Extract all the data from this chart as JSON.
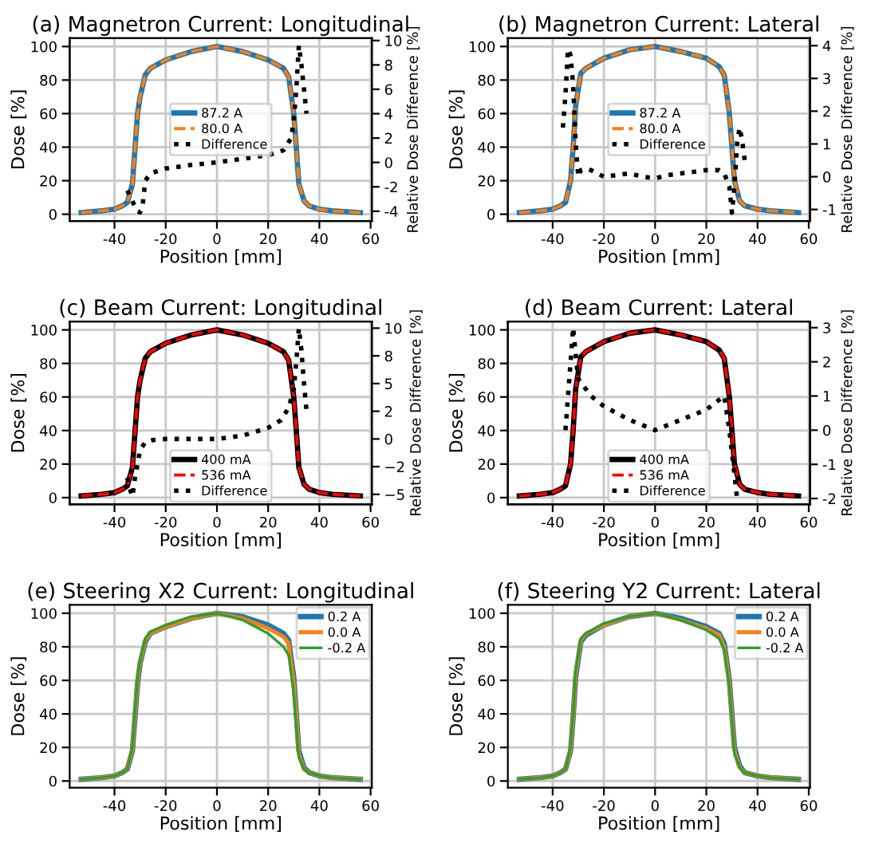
{
  "chart_data": [
    {
      "type": "line",
      "title": "(a) Magnetron Current: Longitudinal",
      "xlabel": "Position [mm]",
      "ylabel": "Dose [%]",
      "y2label": "Relative Dose Difference [%]",
      "x": [
        -53,
        -45,
        -40,
        -37,
        -35,
        -33,
        -31,
        -30,
        -28,
        -26,
        -20,
        -10,
        0,
        10,
        20,
        26,
        28,
        30,
        31,
        32,
        34,
        36,
        40,
        45,
        56
      ],
      "series": [
        {
          "name": "87.2 A",
          "color": "#1f77b4",
          "line_style": "solid",
          "values": [
            1,
            2,
            3,
            5,
            7,
            18,
            60,
            70,
            83,
            87,
            92,
            97,
            100,
            97,
            92,
            87,
            82,
            60,
            40,
            18,
            8,
            5,
            3,
            2,
            1
          ]
        },
        {
          "name": "80.0 A",
          "color": "#ff7f0e",
          "line_style": "dashed",
          "values": [
            1,
            2,
            3,
            5,
            7,
            18,
            60,
            70,
            83,
            87,
            92,
            97,
            100,
            97,
            92,
            87,
            82,
            60,
            40,
            18,
            8,
            5,
            3,
            2,
            1
          ]
        },
        {
          "name": "Difference",
          "color": "#000000",
          "line_style": "dotted",
          "axis": "y2",
          "x": [
            -35,
            -33,
            -31,
            -30,
            -29,
            -28,
            -26,
            -20,
            -10,
            0,
            10,
            20,
            26,
            29,
            30,
            31,
            32,
            33,
            34,
            35
          ],
          "values": [
            -2.3,
            -3.2,
            -4,
            -4.1,
            -3.5,
            -1.5,
            -0.9,
            -0.5,
            -0.2,
            0,
            0.3,
            0.6,
            1,
            2,
            3.5,
            6,
            9.6,
            8,
            6,
            4
          ]
        }
      ],
      "xlim": [
        -57.5,
        60.5
      ],
      "xticks": [
        -40,
        -20,
        0,
        20,
        40,
        60
      ],
      "ylim": [
        -4,
        105
      ],
      "yticks": [
        0,
        20,
        40,
        60,
        80,
        100
      ],
      "y2lim": [
        -4.8,
        10.2
      ],
      "y2ticks": [
        -4,
        -2,
        0,
        2,
        4,
        6,
        8,
        10
      ],
      "grid": true,
      "legend": "center",
      "marker": "none"
    },
    {
      "type": "line",
      "title": "(b) Magnetron Current: Lateral",
      "xlabel": "Position [mm]",
      "ylabel": "Dose [%]",
      "y2label": "Relative Dose Difference [%]",
      "x": [
        -53,
        -45,
        -40,
        -37,
        -35,
        -33,
        -32,
        -31,
        -29,
        -27,
        -20,
        -10,
        0,
        10,
        20,
        25,
        27,
        29,
        30,
        31,
        33,
        35,
        40,
        45,
        56
      ],
      "series": [
        {
          "name": "87.2 A",
          "color": "#1f77b4",
          "line_style": "solid",
          "values": [
            1,
            2,
            3,
            5,
            7,
            20,
            40,
            65,
            84,
            87,
            93,
            98,
            100,
            97,
            93,
            88,
            83,
            60,
            40,
            20,
            8,
            5,
            3,
            2,
            1
          ]
        },
        {
          "name": "80.0 A",
          "color": "#ff7f0e",
          "line_style": "dashed",
          "values": [
            1,
            2,
            3,
            5,
            7,
            20,
            40,
            65,
            84,
            87,
            93,
            98,
            100,
            97,
            93,
            88,
            83,
            60,
            40,
            20,
            8,
            5,
            3,
            2,
            1
          ]
        },
        {
          "name": "Difference",
          "color": "#000000",
          "line_style": "dotted",
          "axis": "y2",
          "x": [
            -36,
            -35,
            -34,
            -33,
            -32,
            -31,
            -30,
            -29,
            -27,
            -25,
            -20,
            -15,
            -10,
            -5,
            0,
            5,
            10,
            15,
            20,
            25,
            27,
            29,
            30,
            31,
            32,
            33,
            34,
            35
          ],
          "values": [
            1.5,
            2.5,
            3.9,
            3.7,
            2.8,
            1,
            0,
            0.2,
            0.25,
            0.2,
            0,
            0.05,
            0.1,
            0,
            -0.05,
            0.05,
            0.1,
            0.15,
            0.2,
            0.2,
            0.1,
            -0.3,
            -1.1,
            -0.3,
            1,
            1.5,
            1.1,
            0.5
          ]
        }
      ],
      "xlim": [
        -57.5,
        60.5
      ],
      "xticks": [
        -40,
        -20,
        0,
        20,
        40,
        60
      ],
      "ylim": [
        -4,
        105
      ],
      "yticks": [
        0,
        20,
        40,
        60,
        80,
        100
      ],
      "y2lim": [
        -1.35,
        4.23
      ],
      "y2ticks": [
        -1,
        0,
        1,
        2,
        3,
        4
      ],
      "grid": true,
      "legend": "center",
      "marker": "none"
    },
    {
      "type": "line",
      "title": "(c) Beam Current: Longitudinal",
      "xlabel": "Position [mm]",
      "ylabel": "Dose [%]",
      "y2label": "Relative Dose Difference [%]",
      "x": [
        -53,
        -45,
        -40,
        -37,
        -35,
        -33,
        -31,
        -30,
        -28,
        -26,
        -20,
        -10,
        0,
        10,
        20,
        26,
        28,
        30,
        31,
        32,
        34,
        36,
        40,
        45,
        56
      ],
      "series": [
        {
          "name": "400 mA",
          "color": "#000000",
          "line_style": "solid",
          "values": [
            1,
            2,
            3,
            5,
            7,
            18,
            60,
            70,
            83,
            87,
            92,
            97,
            100,
            97,
            92,
            87,
            82,
            60,
            40,
            18,
            8,
            5,
            3,
            2,
            1
          ]
        },
        {
          "name": "536 mA",
          "color": "#ff0000",
          "line_style": "dashed",
          "values": [
            1,
            2,
            3,
            5,
            7,
            18,
            60,
            70,
            83,
            87,
            92,
            97,
            100,
            97,
            92,
            87,
            82,
            60,
            40,
            18,
            8,
            5,
            3,
            2,
            1
          ]
        },
        {
          "name": "Difference",
          "color": "#000000",
          "line_style": "dotted",
          "axis": "y2",
          "x": [
            -35,
            -34,
            -33,
            -32,
            -30,
            -28,
            -25,
            -20,
            -10,
            0,
            10,
            20,
            25,
            28,
            30,
            31,
            32,
            33,
            34,
            35
          ],
          "values": [
            -3.5,
            -4.5,
            -5.2,
            -3.5,
            -1,
            -0.3,
            -0.1,
            0,
            0,
            0,
            0.3,
            1,
            1.7,
            2.8,
            4.5,
            7,
            10,
            8,
            5,
            2.5
          ]
        }
      ],
      "xlim": [
        -57.5,
        60.5
      ],
      "xticks": [
        -40,
        -20,
        0,
        20,
        40,
        60
      ],
      "ylim": [
        -4,
        105
      ],
      "yticks": [
        0,
        20,
        40,
        60,
        80,
        100
      ],
      "y2lim": [
        -5.9,
        10.6
      ],
      "y2ticks": [
        {
          "value": -5,
          "label": "−5"
        },
        {
          "value": -2.5,
          "label": "−2"
        },
        0,
        {
          "value": 2.5,
          "label": "2"
        },
        5,
        {
          "value": 7.5,
          "label": "8"
        },
        10
      ],
      "grid": true,
      "legend": "bottom",
      "marker": "none"
    },
    {
      "type": "line",
      "title": "(d) Beam Current: Lateral",
      "xlabel": "Position [mm]",
      "ylabel": "Dose [%]",
      "y2label": "Relative Dose Difference [%]",
      "x": [
        -53,
        -45,
        -40,
        -37,
        -35,
        -33,
        -32,
        -31,
        -29,
        -27,
        -20,
        -10,
        0,
        10,
        20,
        25,
        27,
        29,
        30,
        31,
        33,
        35,
        40,
        45,
        56
      ],
      "series": [
        {
          "name": "400 mA",
          "color": "#000000",
          "line_style": "solid",
          "values": [
            1,
            2,
            3,
            5,
            7,
            20,
            40,
            65,
            84,
            87,
            93,
            98,
            100,
            97,
            93,
            88,
            83,
            60,
            40,
            20,
            8,
            5,
            3,
            2,
            1
          ]
        },
        {
          "name": "536 mA",
          "color": "#ff0000",
          "line_style": "dashed",
          "values": [
            1,
            2,
            3,
            5,
            7,
            20,
            40,
            65,
            84,
            87,
            93,
            98,
            100,
            97,
            93,
            88,
            83,
            60,
            40,
            20,
            8,
            5,
            3,
            2,
            1
          ]
        },
        {
          "name": "Difference",
          "color": "#000000",
          "line_style": "dotted",
          "axis": "y2",
          "x": [
            -35,
            -33,
            -32,
            -31,
            -30,
            -25,
            -20,
            -10,
            0,
            10,
            20,
            27,
            29,
            31,
            32
          ],
          "values": [
            0,
            2,
            3,
            2.2,
            1.5,
            1,
            0.7,
            0.3,
            0,
            0.3,
            0.6,
            1,
            0,
            -1.3,
            -2
          ]
        }
      ],
      "xlim": [
        -57.5,
        60.5
      ],
      "xticks": [
        -40,
        -20,
        0,
        20,
        40,
        60
      ],
      "ylim": [
        -4,
        105
      ],
      "yticks": [
        0,
        20,
        40,
        60,
        80,
        100
      ],
      "y2lim": [
        -2.17,
        3.18
      ],
      "y2ticks": [
        -2,
        -1,
        0,
        1,
        2,
        3
      ],
      "grid": true,
      "legend": "bottom",
      "marker": "none"
    },
    {
      "type": "line",
      "title": "(e) Steering X2 Current: Longitudinal",
      "xlabel": "Position [mm]",
      "ylabel": "Dose [%]",
      "x": [
        -53,
        -45,
        -40,
        -37,
        -35,
        -33,
        -31,
        -30,
        -28,
        -26,
        -20,
        -10,
        0,
        10,
        20,
        26,
        28,
        30,
        31,
        32,
        34,
        36,
        40,
        45,
        56
      ],
      "series": [
        {
          "name": "0.2 A",
          "color": "#1f77b4",
          "line_style": "solid",
          "values": [
            1,
            2,
            3,
            5,
            7,
            18,
            58,
            70,
            83,
            88,
            92,
            97,
            100,
            98,
            93,
            88,
            84,
            62,
            40,
            18,
            8,
            5,
            3,
            2,
            1
          ]
        },
        {
          "name": "0.0 A",
          "color": "#ff7f0e",
          "line_style": "solid",
          "values": [
            1,
            2,
            3,
            5,
            7,
            19,
            60,
            71,
            84,
            88,
            92,
            97,
            100,
            97,
            91,
            86,
            82,
            58,
            38,
            16,
            7,
            5,
            3,
            2,
            1
          ]
        },
        {
          "name": "-0.2 A",
          "color": "#2ca02c",
          "line_style": "solid",
          "values": [
            1,
            2,
            3,
            5,
            7,
            20,
            62,
            72,
            85,
            89,
            93,
            98,
            100,
            96,
            88,
            80,
            75,
            52,
            32,
            14,
            7,
            5,
            3,
            2,
            1
          ]
        }
      ],
      "xlim": [
        -57.5,
        60.5
      ],
      "xticks": [
        -40,
        -20,
        0,
        20,
        40,
        60
      ],
      "ylim": [
        -4,
        105
      ],
      "yticks": [
        0,
        20,
        40,
        60,
        80,
        100
      ],
      "grid": true,
      "legend": "top right",
      "marker": "none"
    },
    {
      "type": "line",
      "title": "(f) Steering Y2 Current: Lateral",
      "xlabel": "Position [mm]",
      "ylabel": "Dose [%]",
      "x": [
        -53,
        -45,
        -40,
        -37,
        -35,
        -33,
        -32,
        -31,
        -29,
        -27,
        -20,
        -10,
        0,
        10,
        20,
        25,
        27,
        29,
        30,
        31,
        33,
        35,
        40,
        45,
        56
      ],
      "series": [
        {
          "name": "0.2 A",
          "color": "#1f77b4",
          "line_style": "solid",
          "values": [
            1,
            2,
            3,
            5,
            7,
            18,
            38,
            62,
            83,
            87,
            93,
            98,
            100,
            97,
            92,
            88,
            82,
            60,
            40,
            20,
            9,
            5,
            3,
            2,
            1
          ]
        },
        {
          "name": "0.0 A",
          "color": "#ff7f0e",
          "line_style": "solid",
          "values": [
            1,
            2,
            3,
            5,
            7,
            19,
            39,
            64,
            84,
            88,
            93,
            98,
            100,
            96,
            91,
            87,
            80,
            58,
            38,
            18,
            8,
            5,
            3,
            2,
            1
          ]
        },
        {
          "name": "-0.2 A",
          "color": "#2ca02c",
          "line_style": "solid",
          "values": [
            1,
            2,
            3,
            5,
            7,
            20,
            40,
            66,
            85,
            88,
            94,
            98,
            100,
            96,
            90,
            85,
            78,
            56,
            36,
            16,
            8,
            5,
            3,
            2,
            1
          ]
        }
      ],
      "xlim": [
        -57.5,
        60.5
      ],
      "xticks": [
        -40,
        -20,
        0,
        20,
        40,
        60
      ],
      "ylim": [
        -4,
        105
      ],
      "yticks": [
        0,
        20,
        40,
        60,
        80,
        100
      ],
      "grid": true,
      "legend": "top right",
      "marker": "none"
    }
  ]
}
